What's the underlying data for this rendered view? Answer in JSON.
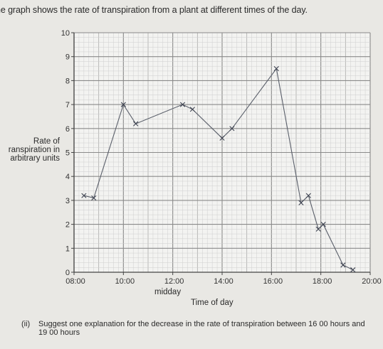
{
  "intro_text": "he graph shows the rate of transpiration from a plant at different times of the day.",
  "question": {
    "number": "(ii)",
    "text": "Suggest one explanation for the decrease in the rate of transpiration between 16 00 hours and 19 00 hours"
  },
  "chart_data": {
    "type": "line",
    "title": "",
    "xlabel": "Time of day",
    "xlabel_note": "midday",
    "ylabel_lines": [
      "Rate of",
      "ranspiration in",
      "arbitrary units"
    ],
    "xlim": [
      8,
      20
    ],
    "ylim": [
      0,
      10
    ],
    "x_ticks": [
      {
        "value": 8,
        "label": "08:00"
      },
      {
        "value": 10,
        "label": "10:00"
      },
      {
        "value": 12,
        "label": "12:00"
      },
      {
        "value": 14,
        "label": "14:00"
      },
      {
        "value": 16,
        "label": "16:00"
      },
      {
        "value": 18,
        "label": "18:00"
      },
      {
        "value": 20,
        "label": "20:00"
      }
    ],
    "y_ticks": [
      {
        "value": 0,
        "label": "0"
      },
      {
        "value": 1,
        "label": "1"
      },
      {
        "value": 2,
        "label": "2"
      },
      {
        "value": 3,
        "label": "3"
      },
      {
        "value": 4,
        "label": "4"
      },
      {
        "value": 5,
        "label": "5"
      },
      {
        "value": 6,
        "label": "6"
      },
      {
        "value": 7,
        "label": "7"
      },
      {
        "value": 8,
        "label": "8"
      },
      {
        "value": 9,
        "label": "9"
      },
      {
        "value": 10,
        "label": "10"
      }
    ],
    "grid": true,
    "points": [
      {
        "x": 8.4,
        "y": 3.2
      },
      {
        "x": 8.8,
        "y": 3.1
      },
      {
        "x": 10.0,
        "y": 7.0
      },
      {
        "x": 10.5,
        "y": 6.2
      },
      {
        "x": 12.4,
        "y": 7.0
      },
      {
        "x": 12.8,
        "y": 6.8
      },
      {
        "x": 14.0,
        "y": 5.6
      },
      {
        "x": 14.4,
        "y": 6.0
      },
      {
        "x": 16.2,
        "y": 8.5
      },
      {
        "x": 17.2,
        "y": 2.9
      },
      {
        "x": 17.5,
        "y": 3.2
      },
      {
        "x": 17.9,
        "y": 1.8
      },
      {
        "x": 18.1,
        "y": 2.0
      },
      {
        "x": 18.9,
        "y": 0.3
      },
      {
        "x": 19.3,
        "y": 0.1
      }
    ]
  }
}
